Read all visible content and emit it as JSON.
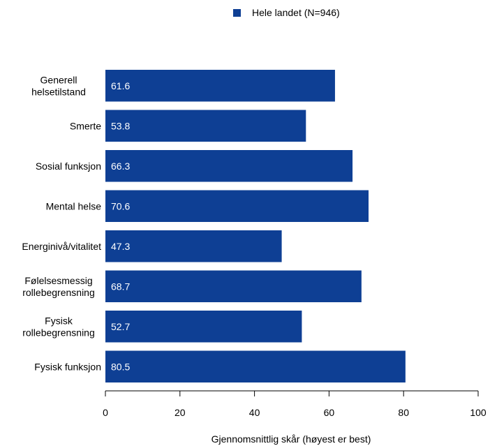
{
  "chart_data": {
    "type": "bar",
    "orientation": "horizontal",
    "categories": [
      "Generell helsetilstand",
      "Smerte",
      "Sosial funksjon",
      "Mental helse",
      "Energinivå/vitalitet",
      "Følelsesmessig rollebegrensning",
      "Fysisk rollebegrensning",
      "Fysisk funksjon"
    ],
    "category_lines": [
      [
        "Generell",
        "helsetilstand"
      ],
      [
        "Smerte"
      ],
      [
        "Sosial funksjon"
      ],
      [
        "Mental helse"
      ],
      [
        "Energinivå/vitalitet"
      ],
      [
        "Følelsesmessig",
        "rollebegrensning"
      ],
      [
        "Fysisk",
        "rollebegrensning"
      ],
      [
        "Fysisk funksjon"
      ]
    ],
    "series": [
      {
        "name": "Hele landet (N=946)",
        "values": [
          61.6,
          53.8,
          66.3,
          70.6,
          47.3,
          68.7,
          52.7,
          80.5
        ],
        "value_labels": [
          "61.6",
          "53.8",
          "66.3",
          "70.6",
          "47.3",
          "68.7",
          "52.7",
          "80.5"
        ]
      }
    ],
    "xlabel": "Gjennomsnittlig skår (høyest er best)",
    "ylabel": "",
    "title": "",
    "xlim": [
      0,
      100
    ],
    "xticks": [
      0,
      20,
      40,
      60,
      80,
      100
    ],
    "xtick_labels": [
      "0",
      "20",
      "40",
      "60",
      "80",
      "100"
    ],
    "grid": false,
    "legend_position": "top",
    "colors": {
      "bar": "#0e3f94",
      "axis": "#000000"
    }
  }
}
